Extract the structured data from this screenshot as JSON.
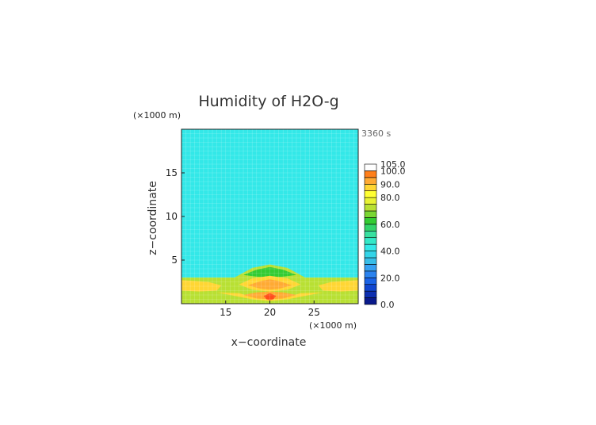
{
  "chart_data": {
    "type": "heatmap",
    "title": "Humidity of H2O-g",
    "time_label": "3360 s",
    "y_unit": "(×1000 m)",
    "x_unit": "(×1000 m)",
    "xlabel": "x−coordinate",
    "ylabel": "z−coordinate",
    "xlim": [
      10,
      30
    ],
    "ylim": [
      0,
      20
    ],
    "x_ticks": [
      {
        "value": 15,
        "label": "15"
      },
      {
        "value": 20,
        "label": "20"
      },
      {
        "value": 25,
        "label": "25"
      }
    ],
    "y_ticks": [
      {
        "value": 5,
        "label": "5"
      },
      {
        "value": 10,
        "label": "10"
      },
      {
        "value": 15,
        "label": "15"
      }
    ],
    "colorbar": {
      "min": 0,
      "max": 105,
      "step": 5,
      "labels": [
        {
          "value": 0,
          "label": "0.0"
        },
        {
          "value": 20,
          "label": "20.0"
        },
        {
          "value": 40,
          "label": "40.0"
        },
        {
          "value": 60,
          "label": "60.0"
        },
        {
          "value": 80,
          "label": "80.0"
        },
        {
          "value": 90,
          "label": "90.0"
        },
        {
          "value": 100,
          "label": "100.0"
        },
        {
          "value": 105,
          "label": "105.0"
        }
      ]
    },
    "background_value": 42,
    "regions": [
      {
        "name": "boundary-layer",
        "value": 70,
        "points": [
          [
            10,
            3.0
          ],
          [
            16,
            3.0
          ],
          [
            18,
            4.1
          ],
          [
            20,
            4.5
          ],
          [
            22,
            4.1
          ],
          [
            24,
            3.0
          ],
          [
            30,
            3.0
          ],
          [
            30,
            0
          ],
          [
            10,
            0
          ]
        ]
      },
      {
        "name": "inner-dome",
        "value": 62,
        "points": [
          [
            17,
            3.3
          ],
          [
            18.5,
            3.9
          ],
          [
            20,
            4.2
          ],
          [
            21.5,
            3.9
          ],
          [
            23,
            3.3
          ],
          [
            21.5,
            3.1
          ],
          [
            20,
            3.0
          ],
          [
            18.5,
            3.1
          ]
        ]
      },
      {
        "name": "low-band-left",
        "value": 85,
        "points": [
          [
            10,
            2.7
          ],
          [
            13,
            2.5
          ],
          [
            14.5,
            2.1
          ],
          [
            14,
            1.5
          ],
          [
            12,
            1.4
          ],
          [
            10,
            1.5
          ]
        ]
      },
      {
        "name": "low-band-right",
        "value": 85,
        "points": [
          [
            30,
            2.7
          ],
          [
            27,
            2.5
          ],
          [
            25.5,
            2.1
          ],
          [
            26,
            1.5
          ],
          [
            28,
            1.4
          ],
          [
            30,
            1.5
          ]
        ]
      },
      {
        "name": "dome-core",
        "value": 85,
        "points": [
          [
            16.5,
            2.2
          ],
          [
            18,
            2.9
          ],
          [
            20,
            3.2
          ],
          [
            22,
            2.9
          ],
          [
            23.5,
            2.2
          ],
          [
            22,
            1.6
          ],
          [
            20,
            1.4
          ],
          [
            18,
            1.6
          ]
        ]
      },
      {
        "name": "core-inner",
        "value": 92,
        "points": [
          [
            17.5,
            2.1
          ],
          [
            19,
            2.6
          ],
          [
            20,
            2.8
          ],
          [
            21,
            2.6
          ],
          [
            22.5,
            2.1
          ],
          [
            21,
            1.7
          ],
          [
            20,
            1.6
          ],
          [
            19,
            1.7
          ]
        ]
      },
      {
        "name": "bottom-band",
        "value": 85,
        "points": [
          [
            14,
            1.3
          ],
          [
            16.5,
            1.2
          ],
          [
            18,
            0.8
          ],
          [
            20,
            0.6
          ],
          [
            22,
            0.8
          ],
          [
            23.5,
            1.2
          ],
          [
            26,
            1.3
          ],
          [
            24,
            0.9
          ],
          [
            22,
            0.5
          ],
          [
            20,
            0.3
          ],
          [
            18,
            0.5
          ],
          [
            16,
            0.9
          ]
        ]
      },
      {
        "name": "bottom-core",
        "value": 92,
        "points": [
          [
            17,
            1.0
          ],
          [
            18.5,
            1.3
          ],
          [
            20,
            1.4
          ],
          [
            21.5,
            1.3
          ],
          [
            23,
            1.0
          ],
          [
            21.5,
            0.6
          ],
          [
            20,
            0.5
          ],
          [
            18.5,
            0.6
          ]
        ]
      },
      {
        "name": "bottom-peak",
        "value": 100,
        "points": [
          [
            19.3,
            0.9
          ],
          [
            20,
            1.2
          ],
          [
            20.7,
            0.9
          ],
          [
            20.4,
            0.5
          ],
          [
            20,
            0.4
          ],
          [
            19.6,
            0.5
          ]
        ]
      }
    ]
  }
}
